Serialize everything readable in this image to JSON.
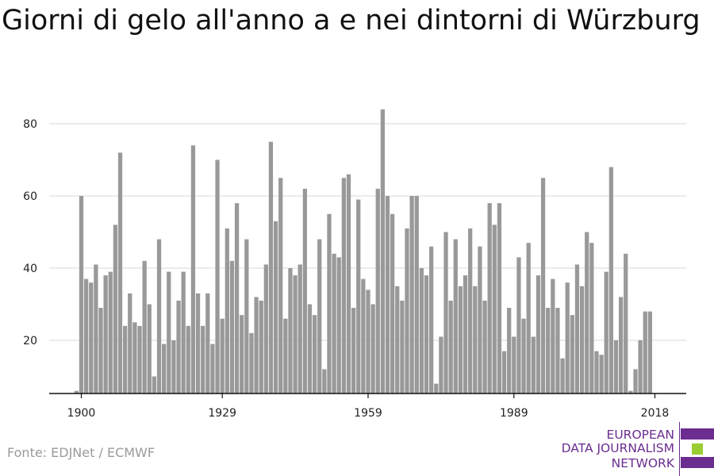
{
  "chart_data": {
    "type": "bar",
    "title": "Giorni di gelo all'anno a e nei dintorni di Würzburg",
    "xlabel": "",
    "ylabel": "",
    "x_ticks": [
      1900,
      1929,
      1959,
      1989,
      2018
    ],
    "y_ticks": [
      20,
      40,
      60,
      80
    ],
    "ylim": [
      5,
      87
    ],
    "grid": "horizontal",
    "color": "#999999",
    "start_year": 1899,
    "values": [
      6,
      60,
      37,
      36,
      41,
      29,
      38,
      39,
      52,
      72,
      24,
      33,
      25,
      24,
      42,
      30,
      10,
      48,
      19,
      39,
      20,
      31,
      39,
      24,
      74,
      33,
      24,
      33,
      19,
      70,
      26,
      51,
      42,
      58,
      27,
      48,
      22,
      32,
      31,
      41,
      75,
      53,
      65,
      26,
      40,
      38,
      41,
      62,
      30,
      27,
      48,
      12,
      55,
      44,
      43,
      65,
      66,
      29,
      59,
      37,
      34,
      30,
      62,
      84,
      60,
      55,
      35,
      31,
      51,
      60,
      60,
      40,
      38,
      46,
      8,
      21,
      50,
      31,
      48,
      35,
      38,
      51,
      35,
      46,
      31,
      58,
      52,
      58,
      17,
      29,
      21,
      43,
      26,
      47,
      21,
      38,
      65,
      29,
      37,
      29,
      15,
      36,
      27,
      41,
      35,
      50,
      47,
      17,
      16,
      39,
      68,
      20,
      32,
      44,
      6,
      12,
      20,
      28,
      28
    ]
  },
  "source": "Fonte: EDJNet / ECMWF",
  "logo": {
    "line1": "EUROPEAN",
    "line2": "DATA JOURNALISM",
    "line3": "NETWORK",
    "purple": "#6b2d8f",
    "green": "#9acd32"
  }
}
